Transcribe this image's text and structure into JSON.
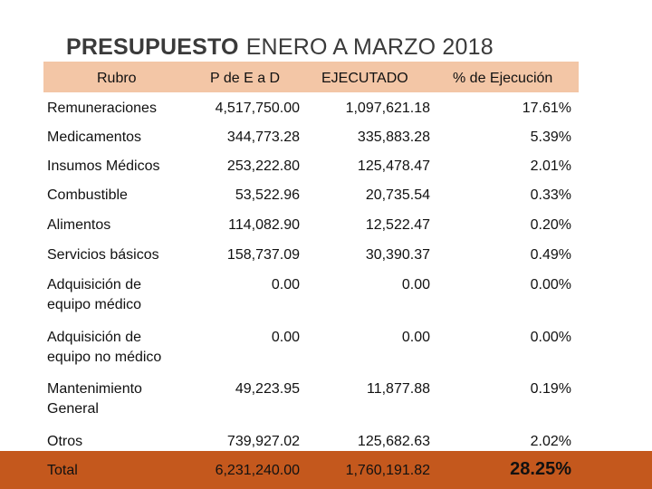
{
  "title": {
    "bold": "PRESUPUESTO",
    "rest": "ENERO A  MARZO  2018"
  },
  "headers": [
    "Rubro",
    "P de E a D",
    "EJECUTADO",
    "% de Ejecución"
  ],
  "rows": [
    {
      "name": "Remuneraciones",
      "pde": "4,517,750.00",
      "ejec": "1,097,621.18",
      "pct": "17.61%"
    },
    {
      "name": "Medicamentos",
      "pde": "344,773.28",
      "ejec": "335,883.28",
      "pct": "5.39%"
    },
    {
      "name": "Insumos Médicos",
      "pde": "253,222.80",
      "ejec": "125,478.47",
      "pct": "2.01%"
    },
    {
      "name": "Combustible",
      "pde": "53,522.96",
      "ejec": "20,735.54",
      "pct": "0.33%"
    },
    {
      "name": "Alimentos",
      "pde": "114,082.90",
      "ejec": "12,522.47",
      "pct": "0.20%"
    },
    {
      "name": "Servicios básicos",
      "pde": "158,737.09",
      "ejec": "30,390.37",
      "pct": "0.49%"
    },
    {
      "name": "Adquisición de equipo médico",
      "pde": "0.00",
      "ejec": "0.00",
      "pct": "0.00%"
    },
    {
      "name": "Adquisición de equipo no médico",
      "pde": "0.00",
      "ejec": "0.00",
      "pct": "0.00%"
    },
    {
      "name": "Mantenimiento General",
      "pde": "49,223.95",
      "ejec": "11,877.88",
      "pct": "0.19%"
    },
    {
      "name": "Otros",
      "pde": "739,927.02",
      "ejec": "125,682.63",
      "pct": "2.02%"
    }
  ],
  "total": {
    "name": "Total",
    "pde": "6,231,240.00",
    "ejec": "1,760,191.82",
    "pct": "28.25%"
  },
  "colors": {
    "header_band": "#f3c6a6",
    "total_band": "#c4581d",
    "title": "#3a3a3a"
  }
}
